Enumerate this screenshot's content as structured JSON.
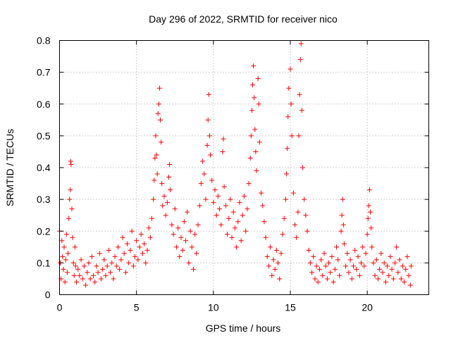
{
  "chart_data": {
    "type": "scatter",
    "title": "Day 296 of 2022, SRMTID for receiver nico",
    "xlabel": "GPS time / hours",
    "ylabel": "SRMTID / TECUs",
    "xlim": [
      0,
      24
    ],
    "ylim": [
      0,
      0.8
    ],
    "xticks": [
      0,
      5,
      10,
      15,
      20
    ],
    "yticks": [
      0,
      0.1,
      0.2,
      0.3,
      0.4,
      0.5,
      0.6,
      0.7,
      0.8
    ],
    "xtick_labels": [
      "0",
      "5",
      "10",
      "15",
      "20"
    ],
    "ytick_labels": [
      "0",
      "0.1",
      "0.2",
      "0.3",
      "0.4",
      "0.5",
      "0.6",
      "0.7",
      "0.8"
    ],
    "grid": true,
    "marker": "+",
    "color": "#ff0000",
    "series": [
      {
        "name": "SRMTID",
        "points": [
          [
            0.0,
            0.2
          ],
          [
            0.05,
            0.1
          ],
          [
            0.1,
            0.05
          ],
          [
            0.15,
            0.17
          ],
          [
            0.2,
            0.12
          ],
          [
            0.25,
            0.08
          ],
          [
            0.3,
            0.15
          ],
          [
            0.35,
            0.04
          ],
          [
            0.4,
            0.11
          ],
          [
            0.45,
            0.19
          ],
          [
            0.5,
            0.07
          ],
          [
            0.55,
            0.13
          ],
          [
            0.6,
            0.24
          ],
          [
            0.65,
            0.3
          ],
          [
            0.7,
            0.33
          ],
          [
            0.72,
            0.42
          ],
          [
            0.75,
            0.41
          ],
          [
            0.8,
            0.27
          ],
          [
            0.85,
            0.18
          ],
          [
            0.9,
            0.1
          ],
          [
            0.95,
            0.06
          ],
          [
            1.0,
            0.15
          ],
          [
            1.05,
            0.09
          ],
          [
            1.1,
            0.04
          ],
          [
            1.2,
            0.08
          ],
          [
            1.3,
            0.06
          ],
          [
            1.4,
            0.11
          ],
          [
            1.5,
            0.05
          ],
          [
            1.6,
            0.09
          ],
          [
            1.7,
            0.03
          ],
          [
            1.8,
            0.07
          ],
          [
            1.9,
            0.1
          ],
          [
            2.0,
            0.05
          ],
          [
            2.1,
            0.12
          ],
          [
            2.2,
            0.06
          ],
          [
            2.3,
            0.04
          ],
          [
            2.4,
            0.09
          ],
          [
            2.5,
            0.07
          ],
          [
            2.6,
            0.13
          ],
          [
            2.7,
            0.05
          ],
          [
            2.8,
            0.08
          ],
          [
            2.9,
            0.11
          ],
          [
            3.0,
            0.06
          ],
          [
            3.1,
            0.09
          ],
          [
            3.2,
            0.14
          ],
          [
            3.3,
            0.07
          ],
          [
            3.4,
            0.1
          ],
          [
            3.5,
            0.05
          ],
          [
            3.6,
            0.12
          ],
          [
            3.7,
            0.09
          ],
          [
            3.8,
            0.15
          ],
          [
            3.9,
            0.08
          ],
          [
            4.0,
            0.11
          ],
          [
            4.1,
            0.18
          ],
          [
            4.2,
            0.13
          ],
          [
            4.3,
            0.07
          ],
          [
            4.4,
            0.16
          ],
          [
            4.5,
            0.1
          ],
          [
            4.6,
            0.14
          ],
          [
            4.7,
            0.2
          ],
          [
            4.8,
            0.09
          ],
          [
            4.9,
            0.12
          ],
          [
            5.0,
            0.17
          ],
          [
            5.1,
            0.11
          ],
          [
            5.2,
            0.15
          ],
          [
            5.3,
            0.19
          ],
          [
            5.4,
            0.13
          ],
          [
            5.5,
            0.16
          ],
          [
            5.6,
            0.1
          ],
          [
            5.7,
            0.14
          ],
          [
            5.8,
            0.21
          ],
          [
            5.9,
            0.18
          ],
          [
            6.0,
            0.24
          ],
          [
            6.1,
            0.3
          ],
          [
            6.15,
            0.36
          ],
          [
            6.2,
            0.43
          ],
          [
            6.25,
            0.5
          ],
          [
            6.3,
            0.44
          ],
          [
            6.35,
            0.38
          ],
          [
            6.4,
            0.57
          ],
          [
            6.45,
            0.6
          ],
          [
            6.5,
            0.65
          ],
          [
            6.55,
            0.55
          ],
          [
            6.6,
            0.48
          ],
          [
            6.65,
            0.35
          ],
          [
            6.7,
            0.28
          ],
          [
            6.8,
            0.31
          ],
          [
            6.9,
            0.25
          ],
          [
            7.0,
            0.29
          ],
          [
            7.1,
            0.37
          ],
          [
            7.15,
            0.41
          ],
          [
            7.2,
            0.33
          ],
          [
            7.3,
            0.22
          ],
          [
            7.4,
            0.19
          ],
          [
            7.5,
            0.27
          ],
          [
            7.6,
            0.15
          ],
          [
            7.7,
            0.21
          ],
          [
            7.8,
            0.12
          ],
          [
            7.9,
            0.18
          ],
          [
            8.0,
            0.14
          ],
          [
            8.1,
            0.23
          ],
          [
            8.2,
            0.17
          ],
          [
            8.3,
            0.26
          ],
          [
            8.4,
            0.1
          ],
          [
            8.5,
            0.2
          ],
          [
            8.6,
            0.15
          ],
          [
            8.7,
            0.08
          ],
          [
            8.8,
            0.19
          ],
          [
            8.9,
            0.13
          ],
          [
            9.0,
            0.22
          ],
          [
            9.1,
            0.28
          ],
          [
            9.2,
            0.35
          ],
          [
            9.3,
            0.42
          ],
          [
            9.4,
            0.38
          ],
          [
            9.5,
            0.3
          ],
          [
            9.6,
            0.47
          ],
          [
            9.65,
            0.55
          ],
          [
            9.7,
            0.63
          ],
          [
            9.75,
            0.5
          ],
          [
            9.8,
            0.44
          ],
          [
            9.9,
            0.36
          ],
          [
            10.0,
            0.29
          ],
          [
            10.1,
            0.33
          ],
          [
            10.2,
            0.25
          ],
          [
            10.3,
            0.31
          ],
          [
            10.4,
            0.27
          ],
          [
            10.5,
            0.22
          ],
          [
            10.6,
            0.45
          ],
          [
            10.65,
            0.49
          ],
          [
            10.7,
            0.34
          ],
          [
            10.8,
            0.28
          ],
          [
            10.9,
            0.19
          ],
          [
            11.0,
            0.24
          ],
          [
            11.1,
            0.3
          ],
          [
            11.2,
            0.18
          ],
          [
            11.3,
            0.26
          ],
          [
            11.4,
            0.21
          ],
          [
            11.5,
            0.15
          ],
          [
            11.6,
            0.23
          ],
          [
            11.7,
            0.29
          ],
          [
            11.8,
            0.17
          ],
          [
            11.9,
            0.25
          ],
          [
            12.0,
            0.31
          ],
          [
            12.1,
            0.2
          ],
          [
            12.2,
            0.27
          ],
          [
            12.3,
            0.35
          ],
          [
            12.4,
            0.43
          ],
          [
            12.45,
            0.5
          ],
          [
            12.5,
            0.58
          ],
          [
            12.55,
            0.66
          ],
          [
            12.6,
            0.72
          ],
          [
            12.65,
            0.62
          ],
          [
            12.7,
            0.52
          ],
          [
            12.75,
            0.45
          ],
          [
            12.8,
            0.39
          ],
          [
            12.9,
            0.68
          ],
          [
            12.95,
            0.6
          ],
          [
            13.0,
            0.48
          ],
          [
            13.1,
            0.32
          ],
          [
            13.2,
            0.28
          ],
          [
            13.3,
            0.23
          ],
          [
            13.4,
            0.18
          ],
          [
            13.5,
            0.12
          ],
          [
            13.6,
            0.09
          ],
          [
            13.7,
            0.15
          ],
          [
            13.8,
            0.06
          ],
          [
            13.9,
            0.11
          ],
          [
            14.0,
            0.08
          ],
          [
            14.1,
            0.14
          ],
          [
            14.2,
            0.1
          ],
          [
            14.3,
            0.05
          ],
          [
            14.4,
            0.13
          ],
          [
            14.5,
            0.19
          ],
          [
            14.6,
            0.24
          ],
          [
            14.7,
            0.3
          ],
          [
            14.75,
            0.38
          ],
          [
            14.8,
            0.46
          ],
          [
            14.85,
            0.56
          ],
          [
            14.9,
            0.65
          ],
          [
            15.0,
            0.71
          ],
          [
            15.05,
            0.6
          ],
          [
            15.1,
            0.5
          ],
          [
            15.2,
            0.32
          ],
          [
            15.3,
            0.22
          ],
          [
            15.4,
            0.18
          ],
          [
            15.5,
            0.26
          ],
          [
            15.55,
            0.5
          ],
          [
            15.6,
            0.63
          ],
          [
            15.65,
            0.74
          ],
          [
            15.7,
            0.79
          ],
          [
            15.75,
            0.58
          ],
          [
            15.8,
            0.4
          ],
          [
            15.9,
            0.3
          ],
          [
            16.0,
            0.25
          ],
          [
            16.1,
            0.2
          ],
          [
            16.2,
            0.14
          ],
          [
            16.3,
            0.1
          ],
          [
            16.4,
            0.07
          ],
          [
            16.5,
            0.12
          ],
          [
            16.6,
            0.05
          ],
          [
            16.7,
            0.09
          ],
          [
            16.8,
            0.04
          ],
          [
            16.9,
            0.08
          ],
          [
            17.0,
            0.11
          ],
          [
            17.1,
            0.06
          ],
          [
            17.2,
            0.13
          ],
          [
            17.3,
            0.09
          ],
          [
            17.4,
            0.05
          ],
          [
            17.5,
            0.1
          ],
          [
            17.6,
            0.07
          ],
          [
            17.7,
            0.12
          ],
          [
            17.8,
            0.04
          ],
          [
            17.9,
            0.08
          ],
          [
            18.0,
            0.15
          ],
          [
            18.1,
            0.11
          ],
          [
            18.2,
            0.06
          ],
          [
            18.3,
            0.2
          ],
          [
            18.35,
            0.25
          ],
          [
            18.4,
            0.3
          ],
          [
            18.45,
            0.22
          ],
          [
            18.5,
            0.16
          ],
          [
            18.6,
            0.09
          ],
          [
            18.7,
            0.13
          ],
          [
            18.8,
            0.07
          ],
          [
            18.9,
            0.11
          ],
          [
            19.0,
            0.05
          ],
          [
            19.1,
            0.09
          ],
          [
            19.2,
            0.14
          ],
          [
            19.3,
            0.08
          ],
          [
            19.4,
            0.12
          ],
          [
            19.5,
            0.06
          ],
          [
            19.6,
            0.1
          ],
          [
            19.7,
            0.15
          ],
          [
            19.8,
            0.09
          ],
          [
            19.9,
            0.13
          ],
          [
            20.0,
            0.19
          ],
          [
            20.05,
            0.24
          ],
          [
            20.1,
            0.28
          ],
          [
            20.15,
            0.33
          ],
          [
            20.2,
            0.26
          ],
          [
            20.25,
            0.21
          ],
          [
            20.3,
            0.15
          ],
          [
            20.4,
            0.1
          ],
          [
            20.5,
            0.06
          ],
          [
            20.6,
            0.11
          ],
          [
            20.7,
            0.05
          ],
          [
            20.8,
            0.08
          ],
          [
            20.9,
            0.13
          ],
          [
            21.0,
            0.07
          ],
          [
            21.1,
            0.1
          ],
          [
            21.2,
            0.04
          ],
          [
            21.3,
            0.09
          ],
          [
            21.4,
            0.06
          ],
          [
            21.5,
            0.12
          ],
          [
            21.6,
            0.08
          ],
          [
            21.7,
            0.05
          ],
          [
            21.8,
            0.1
          ],
          [
            21.9,
            0.15
          ],
          [
            22.0,
            0.07
          ],
          [
            22.1,
            0.11
          ],
          [
            22.2,
            0.05
          ],
          [
            22.3,
            0.09
          ],
          [
            22.4,
            0.04
          ],
          [
            22.5,
            0.08
          ],
          [
            22.6,
            0.12
          ],
          [
            22.7,
            0.06
          ],
          [
            22.8,
            0.03
          ],
          [
            22.85,
            0.09
          ]
        ]
      }
    ]
  }
}
